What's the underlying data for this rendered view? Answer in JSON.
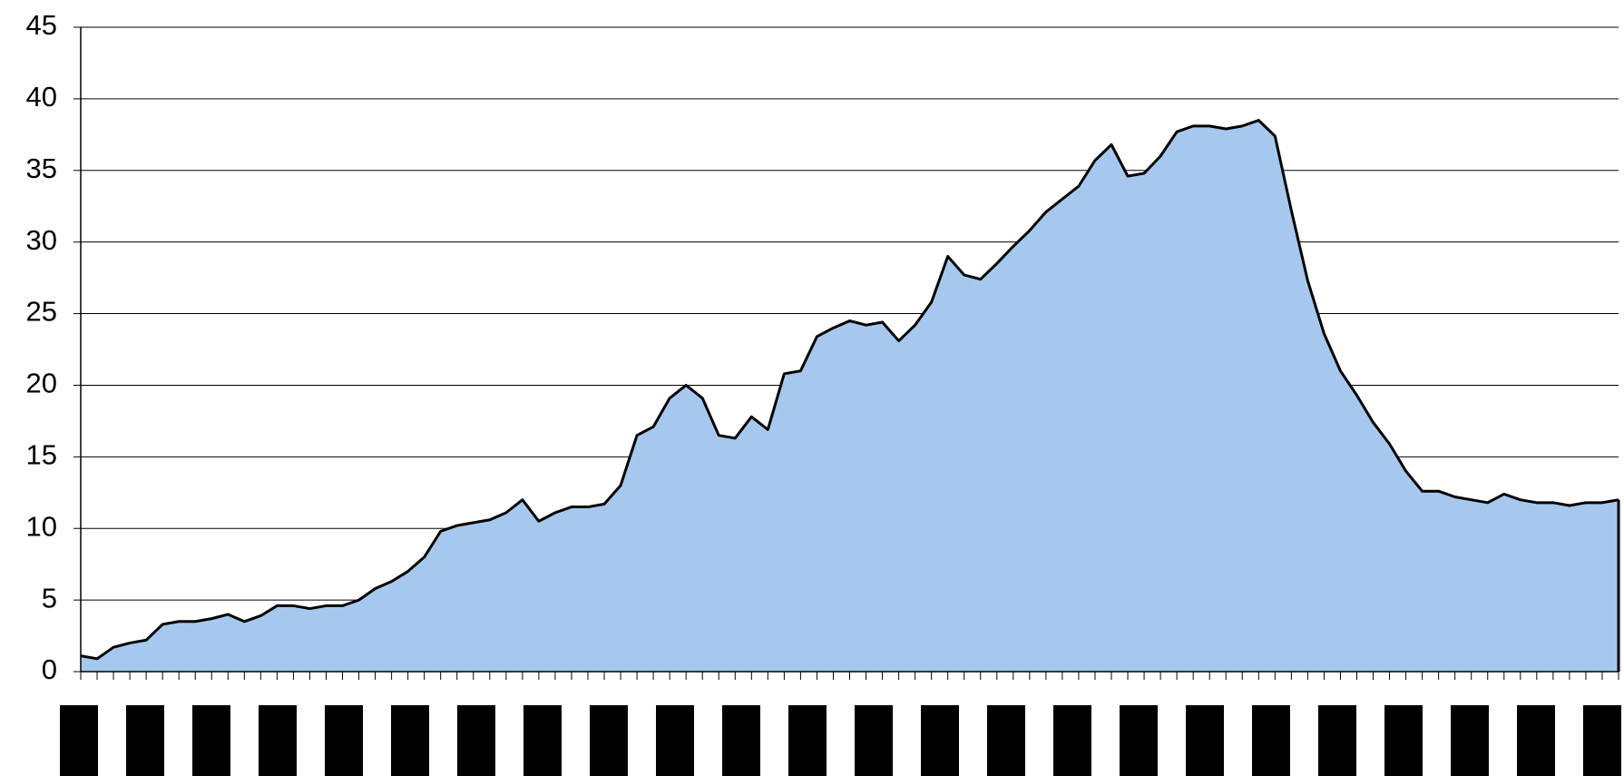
{
  "chart_data": {
    "type": "area",
    "categories": [
      null,
      null,
      null,
      null,
      null,
      null,
      null,
      null,
      null,
      null,
      null,
      null,
      null,
      null,
      null,
      null,
      null,
      null,
      null,
      null,
      null,
      null,
      null,
      null,
      null,
      null,
      null,
      null,
      null,
      null,
      null,
      null,
      null,
      null,
      null,
      null,
      null,
      null,
      null,
      null,
      null,
      null,
      null,
      null,
      null,
      null,
      null,
      null,
      null,
      null,
      null,
      null,
      null,
      null,
      null,
      null,
      null,
      null,
      null,
      null,
      null,
      null,
      null,
      null,
      null,
      null,
      null,
      null,
      null,
      null,
      null,
      null,
      null,
      null,
      null,
      null,
      null,
      null,
      null,
      null,
      null,
      null,
      null,
      null,
      null,
      null,
      null,
      null,
      null,
      null,
      null,
      null,
      null,
      null,
      null
    ],
    "values": [
      1.1,
      0.9,
      1.7,
      2.0,
      2.2,
      3.3,
      3.5,
      3.5,
      3.7,
      4.0,
      3.5,
      3.9,
      4.6,
      4.6,
      4.4,
      4.6,
      4.6,
      5.0,
      5.8,
      6.3,
      7.0,
      8.0,
      9.8,
      10.2,
      10.4,
      10.6,
      11.1,
      12.0,
      10.5,
      11.1,
      11.5,
      11.5,
      11.7,
      13.0,
      16.5,
      17.1,
      19.1,
      20.0,
      19.1,
      16.5,
      16.3,
      17.8,
      16.9,
      20.8,
      21.0,
      23.4,
      24.0,
      24.5,
      24.2,
      24.4,
      23.1,
      24.2,
      25.8,
      29.0,
      27.7,
      27.4,
      28.5,
      29.7,
      30.8,
      32.1,
      33.0,
      33.9,
      35.7,
      36.8,
      34.6,
      34.8,
      36.0,
      37.7,
      38.1,
      38.1,
      37.9,
      38.1,
      38.5,
      37.4,
      32.2,
      27.3,
      23.6,
      21.0,
      19.3,
      17.4,
      15.9,
      14.0,
      12.6,
      12.6,
      12.2,
      12.0,
      11.8,
      12.4,
      12.0,
      11.8,
      11.8,
      11.6,
      11.8,
      11.8,
      12.0
    ],
    "color": "#a6c8ee",
    "ylim": [
      0,
      45
    ],
    "yticks": [
      0,
      5,
      10,
      15,
      20,
      25,
      30,
      35,
      40,
      45
    ],
    "grid": true
  }
}
